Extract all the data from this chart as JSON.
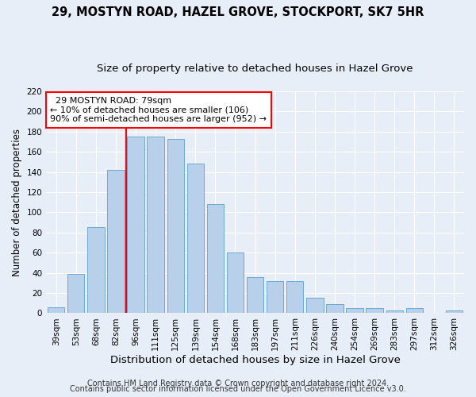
{
  "title": "29, MOSTYN ROAD, HAZEL GROVE, STOCKPORT, SK7 5HR",
  "subtitle": "Size of property relative to detached houses in Hazel Grove",
  "xlabel": "Distribution of detached houses by size in Hazel Grove",
  "ylabel": "Number of detached properties",
  "categories": [
    "39sqm",
    "53sqm",
    "68sqm",
    "82sqm",
    "96sqm",
    "111sqm",
    "125sqm",
    "139sqm",
    "154sqm",
    "168sqm",
    "183sqm",
    "197sqm",
    "211sqm",
    "226sqm",
    "240sqm",
    "254sqm",
    "269sqm",
    "283sqm",
    "297sqm",
    "312sqm",
    "326sqm"
  ],
  "values": [
    6,
    39,
    85,
    142,
    175,
    175,
    173,
    148,
    108,
    60,
    36,
    32,
    32,
    15,
    9,
    5,
    5,
    3,
    5,
    0,
    3
  ],
  "bar_color": "#b8d0ea",
  "bar_edge_color": "#6aaad4",
  "vline_x": 3.5,
  "vline_color": "red",
  "annotation_text": "  29 MOSTYN ROAD: 79sqm\n← 10% of detached houses are smaller (106)\n90% of semi-detached houses are larger (952) →",
  "annotation_box_color": "white",
  "annotation_box_edge_color": "red",
  "ylim": [
    0,
    220
  ],
  "yticks": [
    0,
    20,
    40,
    60,
    80,
    100,
    120,
    140,
    160,
    180,
    200,
    220
  ],
  "footer_line1": "Contains HM Land Registry data © Crown copyright and database right 2024.",
  "footer_line2": "Contains public sector information licensed under the Open Government Licence v3.0.",
  "background_color": "#e8eef8",
  "plot_background_color": "#e8eef8",
  "title_fontsize": 10.5,
  "subtitle_fontsize": 9.5,
  "xlabel_fontsize": 9.5,
  "ylabel_fontsize": 8.5,
  "tick_fontsize": 7.5,
  "footer_fontsize": 7,
  "annotation_fontsize": 8
}
